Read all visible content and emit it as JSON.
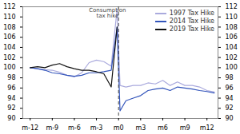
{
  "chart_data": {
    "type": "line",
    "x": [
      -12,
      -11,
      -10,
      -9,
      -8,
      -7,
      -6,
      -5,
      -4,
      -3,
      -2,
      -1,
      -0.2,
      0.2,
      1,
      2,
      3,
      4,
      5,
      6,
      7,
      8,
      9,
      10,
      11,
      12,
      13
    ],
    "series": [
      {
        "name": "1997 Tax Hike",
        "color": "#aaaadd",
        "values": [
          100.0,
          99.8,
          99.6,
          99.5,
          99.1,
          98.5,
          98.2,
          99.0,
          101.0,
          101.5,
          101.2,
          100.3,
          111.5,
          96.5,
          96.2,
          96.5,
          96.5,
          97.0,
          96.8,
          97.5,
          96.5,
          97.2,
          96.5,
          96.5,
          96.2,
          95.5,
          95.2
        ]
      },
      {
        "name": "2014 Tax Hike",
        "color": "#3355bb",
        "values": [
          100.0,
          99.8,
          99.5,
          99.0,
          98.8,
          98.5,
          98.3,
          98.5,
          99.0,
          99.0,
          99.2,
          99.5,
          108.0,
          91.5,
          93.5,
          94.0,
          94.5,
          95.5,
          95.8,
          96.0,
          95.5,
          96.2,
          96.0,
          95.8,
          95.5,
          95.3,
          95.0
        ]
      },
      {
        "name": "2019 Tax Hike",
        "color": "#111111",
        "values": [
          100.0,
          100.2,
          100.0,
          100.5,
          100.8,
          100.2,
          99.8,
          99.5,
          99.5,
          99.2,
          98.8,
          96.2,
          108.0,
          null,
          null,
          null,
          null,
          null,
          null,
          null,
          null,
          null,
          null,
          null,
          null,
          null,
          null
        ]
      }
    ],
    "xlim": [
      -13,
      13.5
    ],
    "xticks": [
      {
        "value": -12,
        "label": "m-12"
      },
      {
        "value": -9,
        "label": "m-9"
      },
      {
        "value": -6,
        "label": "m-6"
      },
      {
        "value": -3,
        "label": "m-3"
      },
      {
        "value": 0,
        "label": "m0"
      },
      {
        "value": 3,
        "label": "m3"
      },
      {
        "value": 6,
        "label": "m6"
      },
      {
        "value": 9,
        "label": "m9"
      },
      {
        "value": 12,
        "label": "m12"
      }
    ],
    "ylim": [
      90,
      112
    ],
    "yticks": [
      90,
      92,
      94,
      96,
      98,
      100,
      102,
      104,
      106,
      108,
      110,
      112
    ],
    "y2lim": [
      90,
      112
    ],
    "y2ticks": [
      90,
      92,
      94,
      96,
      98,
      100,
      102,
      104,
      106,
      108,
      110,
      112
    ],
    "vlines": [
      {
        "x": 0,
        "line_style": "dashed"
      }
    ],
    "annotations": [
      {
        "text": "Consumption\ntax hike",
        "x": -1.5,
        "y": 111.8
      }
    ],
    "legend": "upper right",
    "grid": false
  }
}
